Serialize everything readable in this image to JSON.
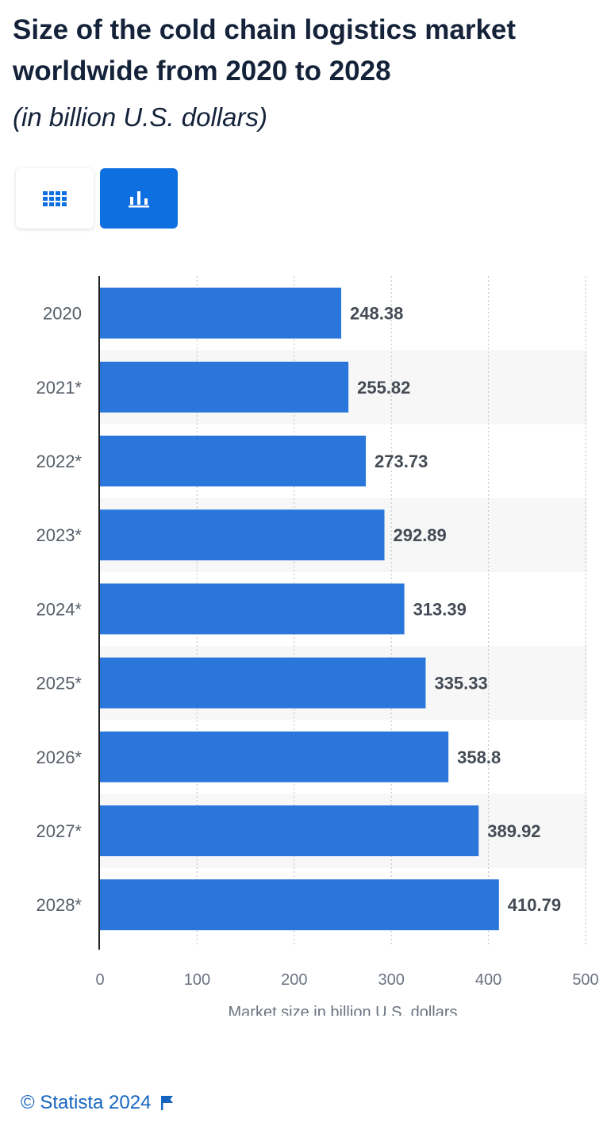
{
  "header": {
    "title": "Size of the cold chain logistics market worldwide from 2020 to 2028",
    "subtitle": "(in billion U.S. dollars)"
  },
  "view_toggle": {
    "table_icon": "table-grid-icon",
    "chart_icon": "bar-chart-icon",
    "active": "chart",
    "active_color": "#0e6fe0"
  },
  "chart_data": {
    "type": "bar",
    "orientation": "horizontal",
    "categories": [
      "2020",
      "2021*",
      "2022*",
      "2023*",
      "2024*",
      "2025*",
      "2026*",
      "2027*",
      "2028*"
    ],
    "values": [
      248.38,
      255.82,
      273.73,
      292.89,
      313.39,
      335.33,
      358.8,
      389.92,
      410.79
    ],
    "value_labels": [
      "248.38",
      "255.82",
      "273.73",
      "292.89",
      "313.39",
      "335.33",
      "358.8",
      "389.92",
      "410.79"
    ],
    "xlabel": "Market size in billion U.S. dollars",
    "ylabel": "",
    "xlim": [
      0,
      500
    ],
    "xticks": [
      "0",
      "100",
      "200",
      "300",
      "400",
      "500"
    ],
    "grid": true,
    "bar_color": "#2a76db"
  },
  "footer": {
    "copyright": "© Statista 2024",
    "flag_icon": "flag-icon"
  }
}
